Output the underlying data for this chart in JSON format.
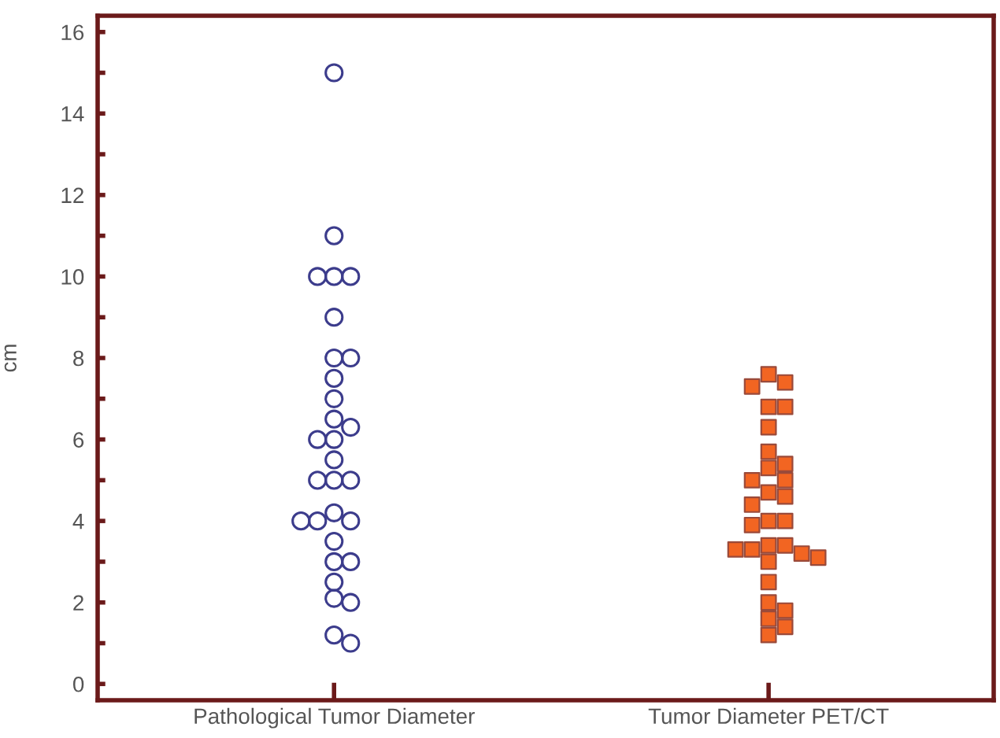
{
  "chart_data": {
    "type": "scatter",
    "ylabel": "cm",
    "categories": [
      "Pathological Tumor Diameter",
      "Tumor Diameter PET/CT"
    ],
    "ylim": [
      -0.4,
      16.4
    ],
    "yticks": [
      0,
      {
        "value": 1,
        "label": null
      },
      2,
      {
        "value": 3,
        "label": null
      },
      4,
      {
        "value": 5,
        "label": null
      },
      6,
      {
        "value": 7,
        "label": null
      },
      8,
      {
        "value": 9,
        "label": null
      },
      10,
      {
        "value": 11,
        "label": null
      },
      12,
      {
        "value": 13,
        "label": null
      },
      14,
      {
        "value": 15,
        "label": null
      },
      16
    ],
    "grid": false,
    "legend": false,
    "series": [
      {
        "marker": "circle",
        "color": "#3c3c8c",
        "x": [
          "Pathological Tumor Diameter",
          "Pathological Tumor Diameter",
          "Pathological Tumor Diameter",
          "Pathological Tumor Diameter",
          "Pathological Tumor Diameter",
          "Pathological Tumor Diameter",
          "Pathological Tumor Diameter",
          "Pathological Tumor Diameter",
          "Pathological Tumor Diameter",
          "Pathological Tumor Diameter",
          "Pathological Tumor Diameter",
          "Pathological Tumor Diameter",
          "Pathological Tumor Diameter",
          "Pathological Tumor Diameter",
          "Pathological Tumor Diameter",
          "Pathological Tumor Diameter",
          "Pathological Tumor Diameter",
          "Pathological Tumor Diameter",
          "Pathological Tumor Diameter",
          "Pathological Tumor Diameter",
          "Pathological Tumor Diameter",
          "Pathological Tumor Diameter",
          "Pathological Tumor Diameter",
          "Pathological Tumor Diameter",
          "Pathological Tumor Diameter",
          "Pathological Tumor Diameter",
          "Pathological Tumor Diameter",
          "Pathological Tumor Diameter",
          "Pathological Tumor Diameter",
          "Pathological Tumor Diameter"
        ],
        "values": [
          15,
          11,
          10,
          10,
          10,
          9,
          8,
          8,
          7.5,
          7,
          6.5,
          6.3,
          6,
          6,
          5.5,
          5,
          5,
          5,
          4.2,
          4,
          4,
          4,
          3.5,
          3,
          3,
          2.5,
          2.1,
          2,
          1.2,
          1
        ]
      },
      {
        "marker": "square",
        "color": "#f26522",
        "x": [
          "Tumor Diameter PET/CT",
          "Tumor Diameter PET/CT",
          "Tumor Diameter PET/CT",
          "Tumor Diameter PET/CT",
          "Tumor Diameter PET/CT",
          "Tumor Diameter PET/CT",
          "Tumor Diameter PET/CT",
          "Tumor Diameter PET/CT",
          "Tumor Diameter PET/CT",
          "Tumor Diameter PET/CT",
          "Tumor Diameter PET/CT",
          "Tumor Diameter PET/CT",
          "Tumor Diameter PET/CT",
          "Tumor Diameter PET/CT",
          "Tumor Diameter PET/CT",
          "Tumor Diameter PET/CT",
          "Tumor Diameter PET/CT",
          "Tumor Diameter PET/CT",
          "Tumor Diameter PET/CT",
          "Tumor Diameter PET/CT",
          "Tumor Diameter PET/CT",
          "Tumor Diameter PET/CT",
          "Tumor Diameter PET/CT",
          "Tumor Diameter PET/CT",
          "Tumor Diameter PET/CT",
          "Tumor Diameter PET/CT",
          "Tumor Diameter PET/CT",
          "Tumor Diameter PET/CT",
          "Tumor Diameter PET/CT",
          "Tumor Diameter PET/CT"
        ],
        "values": [
          7.6,
          7.4,
          7.3,
          6.8,
          6.8,
          6.3,
          5.7,
          5.4,
          5.3,
          5.0,
          5.0,
          4.7,
          4.6,
          4.4,
          4.0,
          4.0,
          3.9,
          3.4,
          3.4,
          3.3,
          3.3,
          3.2,
          3.1,
          3.0,
          2.5,
          2.0,
          1.8,
          1.6,
          1.4,
          1.2
        ]
      }
    ]
  }
}
